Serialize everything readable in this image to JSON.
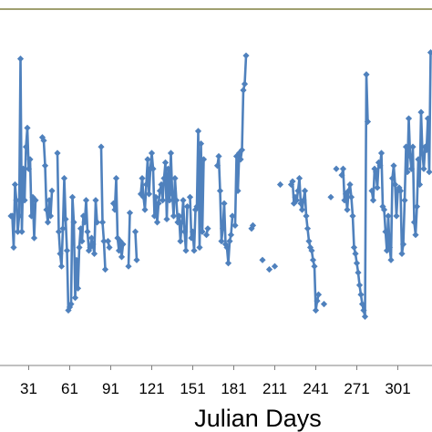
{
  "chart_data": {
    "type": "line",
    "title": "",
    "xlabel": "Julian Days",
    "ylabel": "",
    "x_ticks": [
      31,
      61,
      91,
      121,
      151,
      181,
      211,
      241,
      271,
      301
    ],
    "x_tick_labels": [
      "31",
      "61",
      "91",
      "121",
      "151",
      "181",
      "211",
      "241",
      "271",
      "301"
    ],
    "xlim": [
      10,
      326
    ],
    "ylim": [
      0,
      100
    ],
    "grid": false,
    "legend": "none",
    "colors": {
      "line": "#4F81BD",
      "plot_border": "#808040",
      "axis": "#808080"
    },
    "series": [
      {
        "x": [
          [
            18,
            19,
            20,
            21,
            22,
            23,
            24,
            25,
            26,
            27,
            28,
            29,
            30,
            31,
            32,
            33,
            34,
            35,
            36
          ],
          [
            41,
            42,
            43,
            44,
            45,
            46,
            47,
            48
          ],
          [
            52,
            53,
            54,
            55,
            56,
            57,
            58,
            59,
            60,
            61,
            62,
            63,
            64,
            65,
            66,
            67,
            68,
            69,
            70,
            71,
            72,
            73,
            74,
            75,
            76,
            77,
            78,
            79,
            80,
            81
          ],
          [
            84,
            85,
            86,
            87
          ],
          [
            89,
            90
          ],
          [
            93,
            94,
            95,
            96,
            97,
            98,
            99,
            100
          ],
          [
            104,
            105
          ],
          [
            109,
            110
          ],
          [
            113,
            114,
            115,
            116,
            117,
            118,
            119,
            120,
            121,
            122,
            123,
            124,
            125,
            126,
            127,
            128,
            129,
            130,
            131,
            132,
            133,
            134,
            135,
            136,
            137,
            138,
            139,
            140,
            141,
            142,
            143,
            144,
            145,
            146,
            147
          ],
          [
            149,
            150,
            151,
            152,
            153,
            154,
            155,
            156,
            157,
            158,
            159
          ],
          [
            161,
            162
          ],
          [
            169,
            170,
            171,
            172,
            173,
            174,
            175,
            176,
            177,
            178,
            179,
            180
          ],
          [
            182,
            183,
            184,
            185,
            186,
            187,
            188,
            189,
            190
          ],
          [
            194,
            195
          ],
          [
            202
          ],
          [
            207
          ],
          [
            211
          ],
          [
            215
          ],
          [
            223,
            224,
            225,
            226,
            227,
            228,
            229,
            230,
            231,
            232,
            233,
            234,
            235,
            236,
            237,
            238,
            239,
            240,
            241,
            242,
            243
          ],
          [
            247
          ],
          [
            252
          ],
          [
            256
          ],
          [
            260,
            261,
            262,
            263,
            264,
            265,
            266,
            267,
            268,
            269,
            270,
            271,
            272,
            273,
            274,
            275,
            276,
            277,
            278,
            279
          ],
          [
            282,
            283,
            284,
            285,
            286,
            287,
            288,
            289,
            290,
            291,
            292,
            293,
            294,
            295,
            296,
            297,
            298,
            299,
            300,
            301,
            302,
            303,
            304,
            305,
            306,
            307,
            308,
            309,
            310,
            311,
            312,
            313,
            314,
            315,
            316,
            317,
            318,
            319,
            320,
            321,
            322,
            323,
            324,
            325
          ]
        ],
        "y": [
          [
            40,
            40,
            30,
            50,
            45,
            35,
            40,
            90,
            35,
            55,
            45,
            62,
            68,
            55,
            58,
            40,
            46,
            33,
            45
          ],
          [
            65,
            64,
            56,
            42,
            38,
            45,
            40,
            48
          ],
          [
            60,
            35,
            28,
            24,
            36,
            52,
            39,
            29,
            10,
            11,
            12,
            46,
            38,
            14,
            26,
            17,
            30,
            36,
            32,
            40,
            38,
            45,
            35,
            29,
            30,
            33,
            31,
            28,
            45,
            38
          ],
          [
            62,
            38,
            32,
            23
          ],
          [
            32,
            30
          ],
          [
            44,
            42,
            52,
            33,
            29,
            32,
            27,
            31
          ],
          [
            24,
            41
          ],
          [
            35,
            26
          ],
          [
            47,
            52,
            46,
            42,
            50,
            58,
            47,
            55,
            60,
            55,
            40,
            46,
            38,
            44,
            48,
            50,
            45,
            52,
            57,
            39,
            55,
            45,
            60,
            47,
            40,
            52,
            45,
            38,
            40,
            32,
            38,
            45,
            35,
            29,
            43
          ],
          [
            46,
            33,
            35,
            29,
            42,
            43,
            67,
            30,
            63,
            35,
            58
          ],
          [
            34,
            36
          ],
          [
            56,
            59,
            48,
            32,
            36,
            44,
            31,
            30,
            25,
            32,
            34,
            40
          ],
          [
            37,
            59,
            48,
            60,
            58,
            61,
            80,
            82,
            91
          ],
          [
            36,
            37
          ],
          [
            26
          ],
          [
            23
          ],
          [
            24
          ],
          [
            50
          ],
          [
            50,
            51,
            44,
            46,
            45,
            48,
            52,
            44,
            42,
            45,
            48,
            40,
            36,
            32,
            30,
            29,
            26,
            24,
            10,
            13,
            15
          ],
          [
            12
          ],
          [
            46
          ],
          [
            55
          ],
          [
            53,
            55,
            45,
            47,
            42,
            48,
            50,
            46,
            40,
            30,
            28,
            25,
            22,
            18,
            15,
            12,
            10,
            8,
            85,
            70
          ],
          [
            48,
            45,
            55,
            54,
            49,
            57,
            56,
            60,
            43,
            42,
            35,
            29,
            40,
            30,
            26,
            52,
            56,
            50,
            40,
            48,
            49,
            48,
            28,
            31,
            45,
            62,
            54,
            71,
            59,
            55,
            62,
            38,
            34,
            43,
            58,
            50,
            73,
            60,
            55,
            62,
            61,
            71,
            54,
            92
          ]
        ]
      }
    ]
  }
}
